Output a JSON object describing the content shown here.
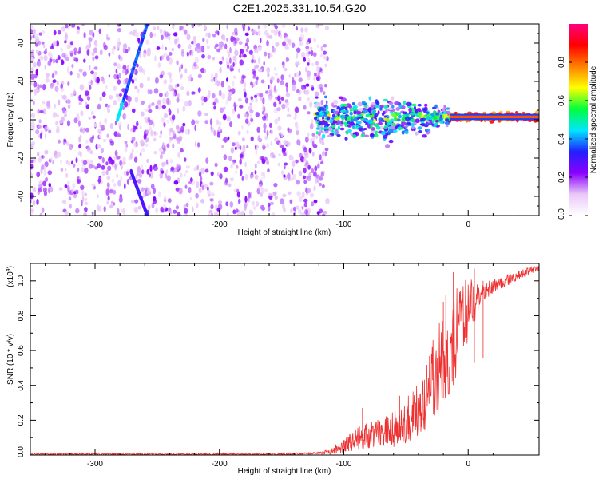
{
  "title": "C2E1.2025.331.10.54.G20",
  "chart_data": [
    {
      "type": "heatmap",
      "xlabel": "Height of straight line (km)",
      "ylabel": "Frequency (Hz)",
      "xlim": [
        -352,
        57
      ],
      "ylim": [
        -50,
        50
      ],
      "xticks": [
        -300,
        -200,
        -100,
        0
      ],
      "yticks": [
        -40,
        -20,
        0,
        20,
        40
      ],
      "colorbar": {
        "label": "Normalized spectral amplitude",
        "range": [
          0,
          1
        ],
        "ticks": [
          0.0,
          0.2,
          0.4,
          0.6,
          0.8
        ],
        "tick_labels": [
          "0.0",
          "0.2",
          "0.4",
          "0.6",
          "0.8"
        ],
        "stops": [
          "#ffffff",
          "#e9c8f7",
          "#8a00ff",
          "#2020ff",
          "#00e6ff",
          "#00ff3c",
          "#ffff00",
          "#ff8000",
          "#ff0000",
          "#ff0080"
        ]
      },
      "features": [
        {
          "name": "scattered noise",
          "x_range": [
            -352,
            -113
          ],
          "freq_range": [
            -50,
            50
          ],
          "amplitude": 0.1
        },
        {
          "name": "diagonal trace upper",
          "x_range": [
            -282,
            -258
          ],
          "freq_range": [
            0,
            50
          ],
          "amplitude": 0.35
        },
        {
          "name": "diagonal trace lower",
          "x_range": [
            -271,
            -258
          ],
          "freq_range": [
            -50,
            -27
          ],
          "amplitude": 0.3
        },
        {
          "name": "main signal band",
          "x_range": [
            -123,
            57
          ],
          "center_freq": 1.5,
          "amplitude": 0.9
        }
      ]
    },
    {
      "type": "line",
      "xlabel": "Height of straight line (km)",
      "ylabel": "SNR (10 * v/v)",
      "scale_label": "(x10",
      "scale_exp": "4",
      "scale_close": ")",
      "xlim": [
        -352,
        57
      ],
      "ylim": [
        0,
        1.1
      ],
      "xticks": [
        -300,
        -200,
        -100,
        0
      ],
      "yticks": [
        0.0,
        0.2,
        0.4,
        0.6,
        0.8,
        1.0
      ],
      "ytick_labels": [
        "0.0",
        "0.2",
        "0.4",
        "0.6",
        "0.8",
        "1.0"
      ],
      "color": "#ee3030",
      "series": [
        {
          "name": "SNR",
          "x": [
            -352,
            -300,
            -250,
            -200,
            -150,
            -120,
            -110,
            -100,
            -90,
            -80,
            -70,
            -60,
            -50,
            -40,
            -30,
            -20,
            -10,
            0,
            10,
            20,
            30,
            40,
            50,
            57
          ],
          "y": [
            0.005,
            0.005,
            0.005,
            0.005,
            0.005,
            0.01,
            0.02,
            0.05,
            0.09,
            0.11,
            0.13,
            0.15,
            0.2,
            0.28,
            0.4,
            0.55,
            0.7,
            0.84,
            0.92,
            0.97,
            1.0,
            1.03,
            1.06,
            1.07
          ],
          "noise": [
            0.005,
            0.005,
            0.005,
            0.005,
            0.005,
            0.005,
            0.015,
            0.03,
            0.05,
            0.06,
            0.06,
            0.08,
            0.1,
            0.14,
            0.18,
            0.22,
            0.2,
            0.14,
            0.05,
            0.03,
            0.025,
            0.02,
            0.015,
            0.012
          ],
          "spikes": [
            [
              -85,
              0.27
            ],
            [
              -65,
              0.22
            ],
            [
              -55,
              0.34
            ],
            [
              -20,
              0.88
            ],
            [
              -18,
              0.92
            ],
            [
              -12,
              1.05
            ],
            [
              -5,
              0.95
            ],
            [
              5,
              1.07
            ],
            [
              12,
              1.0
            ]
          ]
        }
      ]
    }
  ]
}
